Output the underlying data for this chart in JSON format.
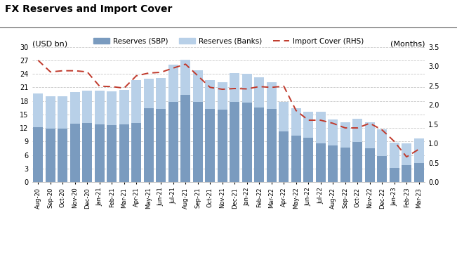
{
  "title": "FX Reserves and Import Cover",
  "ylabel_left": "(USD bn)",
  "ylabel_right": "(Months)",
  "categories": [
    "Aug-20",
    "Sep-20",
    "Oct-20",
    "Nov-20",
    "Dec-20",
    "Jan-21",
    "Feb-21",
    "Mar-21",
    "Apr-21",
    "May-21",
    "Jun-21",
    "Jul-21",
    "Aug-21",
    "Sep-21",
    "Oct-21",
    "Nov-21",
    "Dec-21",
    "Jan-22",
    "Feb-22",
    "Mar-22",
    "Apr-22",
    "May-22",
    "Jun-22",
    "Jul-22",
    "Aug-22",
    "Sep-22",
    "Oct-22",
    "Nov-22",
    "Dec-22",
    "Jan-23",
    "Feb-23",
    "Mar-23"
  ],
  "sbp_reserves": [
    12.1,
    11.9,
    11.9,
    13.0,
    13.1,
    12.8,
    12.7,
    12.8,
    13.1,
    16.4,
    16.2,
    17.8,
    19.4,
    17.8,
    16.2,
    16.0,
    17.8,
    17.6,
    16.5,
    16.2,
    11.3,
    10.3,
    9.8,
    8.6,
    8.1,
    7.7,
    8.9,
    7.5,
    5.8,
    3.1,
    3.8,
    4.2
  ],
  "banks_reserves": [
    7.5,
    7.2,
    7.2,
    7.0,
    7.1,
    7.5,
    7.4,
    7.6,
    9.5,
    6.5,
    6.8,
    8.2,
    7.8,
    7.0,
    6.4,
    6.2,
    6.4,
    6.4,
    6.8,
    5.9,
    6.4,
    6.0,
    5.8,
    7.0,
    5.7,
    5.5,
    5.1,
    5.8,
    5.9,
    5.7,
    4.8,
    5.5
  ],
  "import_cover": [
    3.15,
    2.85,
    2.88,
    2.88,
    2.85,
    2.48,
    2.47,
    2.43,
    2.75,
    2.82,
    2.84,
    2.95,
    3.05,
    2.75,
    2.45,
    2.4,
    2.42,
    2.41,
    2.47,
    2.45,
    2.48,
    1.85,
    1.6,
    1.6,
    1.52,
    1.4,
    1.4,
    1.52,
    1.35,
    1.05,
    0.65,
    0.85
  ],
  "color_sbp": "#7a9bbf",
  "color_banks": "#b8d0e8",
  "color_line": "#c0392b",
  "ylim_left": [
    0,
    30
  ],
  "ylim_right": [
    0,
    3.5
  ],
  "yticks_left": [
    0,
    3,
    6,
    9,
    12,
    15,
    18,
    21,
    24,
    27,
    30
  ],
  "yticks_right": [
    0.0,
    0.5,
    1.0,
    1.5,
    2.0,
    2.5,
    3.0,
    3.5
  ],
  "background_color": "#ffffff",
  "grid_color": "#c8c8c8"
}
